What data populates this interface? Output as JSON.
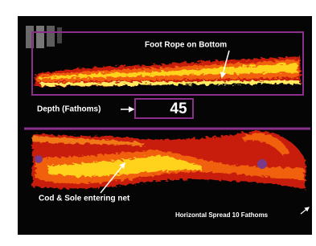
{
  "labels": {
    "foot_rope": "Foot Rope on Bottom",
    "depth": "Depth (Fathoms)",
    "depth_value": 45,
    "catch": "Cod & Sole entering net",
    "spread": "Horizontal Spread 10 Fathoms"
  }
}
